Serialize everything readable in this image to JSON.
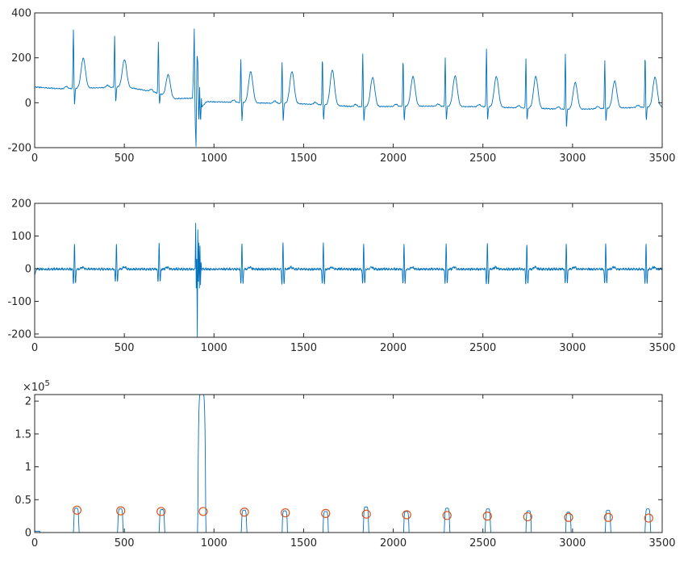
{
  "chart_data": [
    {
      "type": "line",
      "title": "",
      "xlabel": "",
      "ylabel": "",
      "xlim": [
        0,
        3500
      ],
      "ylim": [
        -200,
        400
      ],
      "x_ticks": [
        0,
        500,
        1000,
        1500,
        2000,
        2500,
        3000,
        3500
      ],
      "y_ticks": [
        -200,
        0,
        200,
        400
      ],
      "grid": false,
      "color": "#0072BD",
      "series": [
        {
          "trend": [
            [
              0,
              70
            ],
            [
              150,
              62
            ],
            [
              420,
              68
            ],
            [
              500,
              72
            ],
            [
              650,
              50
            ],
            [
              700,
              40
            ],
            [
              760,
              18
            ],
            [
              880,
              20
            ],
            [
              910,
              30
            ],
            [
              930,
              -20
            ],
            [
              960,
              5
            ],
            [
              1200,
              0
            ],
            [
              1500,
              -5
            ],
            [
              1800,
              -18
            ],
            [
              2200,
              -15
            ],
            [
              2500,
              -18
            ],
            [
              2800,
              -25
            ],
            [
              3000,
              -30
            ],
            [
              3400,
              -20
            ],
            [
              3500,
              -18
            ]
          ],
          "beats": [
            {
              "r": 216,
              "peak": 330,
              "s": -12,
              "t": 197
            },
            {
              "r": 446,
              "peak": 300,
              "s": 0,
              "t": 190
            },
            {
              "r": 690,
              "peak": 273,
              "s": -8,
              "t": 143
            },
            {
              "r": 1150,
              "peak": 198,
              "s": -85,
              "t": 139
            },
            {
              "r": 1380,
              "peak": 185,
              "s": -85,
              "t": 140
            },
            {
              "r": 1605,
              "peak": 205,
              "s": -80,
              "t": 148
            },
            {
              "r": 1830,
              "peak": 222,
              "s": -85,
              "t": 112
            },
            {
              "r": 2055,
              "peak": 198,
              "s": -82,
              "t": 116
            },
            {
              "r": 2290,
              "peak": 203,
              "s": -78,
              "t": 120
            },
            {
              "r": 2520,
              "peak": 244,
              "s": -80,
              "t": 118
            },
            {
              "r": 2740,
              "peak": 200,
              "s": -80,
              "t": 118
            },
            {
              "r": 2960,
              "peak": 222,
              "s": -112,
              "t": 90
            },
            {
              "r": 3180,
              "peak": 190,
              "s": -85,
              "t": 95
            },
            {
              "r": 3405,
              "peak": 215,
              "s": -82,
              "t": 113
            }
          ],
          "artifact": {
            "x": [
              880,
              885,
              890,
              895,
              900,
              905,
              910,
              915,
              920,
              925,
              930
            ],
            "y": [
              20,
              120,
              330,
              -80,
              -195,
              215,
              180,
              -110,
              70,
              -100,
              20
            ]
          }
        }
      ]
    },
    {
      "type": "line",
      "title": "",
      "xlabel": "",
      "ylabel": "",
      "xlim": [
        0,
        3500
      ],
      "ylim": [
        -210,
        200
      ],
      "x_ticks": [
        0,
        500,
        1000,
        1500,
        2000,
        2500,
        3000,
        3500
      ],
      "y_ticks": [
        -200,
        -100,
        0,
        100,
        200
      ],
      "grid": false,
      "color": "#0072BD",
      "series": [
        {
          "beats": [
            {
              "r": 222,
              "peak": 80,
              "min": -45
            },
            {
              "r": 456,
              "peak": 80,
              "min": -40
            },
            {
              "r": 694,
              "peak": 82,
              "min": -40
            },
            {
              "r": 1156,
              "peak": 80,
              "min": -45
            },
            {
              "r": 1385,
              "peak": 80,
              "min": -45
            },
            {
              "r": 1610,
              "peak": 80,
              "min": -45
            },
            {
              "r": 1835,
              "peak": 80,
              "min": -45
            },
            {
              "r": 2060,
              "peak": 80,
              "min": -45
            },
            {
              "r": 2295,
              "peak": 80,
              "min": -45
            },
            {
              "r": 2525,
              "peak": 80,
              "min": -45
            },
            {
              "r": 2745,
              "peak": 78,
              "min": -45
            },
            {
              "r": 2965,
              "peak": 80,
              "min": -45
            },
            {
              "r": 3185,
              "peak": 80,
              "min": -45
            },
            {
              "r": 3410,
              "peak": 80,
              "min": -45
            }
          ],
          "artifact": {
            "x": [
              895,
              898,
              901,
              904,
              907,
              910,
              913,
              916,
              919,
              922,
              925,
              928,
              931
            ],
            "y": [
              0,
              140,
              -60,
              30,
              -210,
              120,
              -40,
              80,
              -60,
              70,
              -50,
              20,
              0
            ]
          }
        }
      ]
    },
    {
      "type": "line",
      "title": "",
      "xlabel": "",
      "ylabel": "",
      "exponent_label": "×10",
      "exponent_power": "5",
      "xlim": [
        0,
        3500
      ],
      "ylim": [
        0,
        2.1
      ],
      "x_ticks": [
        0,
        500,
        1000,
        1500,
        2000,
        2500,
        3000,
        3500
      ],
      "y_ticks": [
        0,
        0.5,
        1,
        1.5,
        2
      ],
      "y_tick_labels": [
        "0",
        "0.5",
        "1",
        "1.5",
        "2"
      ],
      "grid": false,
      "line_color": "#0072BD",
      "marker_color": "#D95319",
      "series": [
        {
          "name": "",
          "humps": [
            {
              "center": 232,
              "height": 0.37
            },
            {
              "center": 478,
              "height": 0.36
            },
            {
              "center": 710,
              "height": 0.35
            },
            {
              "center": 932,
              "height": 2.12,
              "width": 45
            },
            {
              "center": 1168,
              "height": 0.34
            },
            {
              "center": 1395,
              "height": 0.33
            },
            {
              "center": 1623,
              "height": 0.32
            },
            {
              "center": 1848,
              "height": 0.39
            },
            {
              "center": 2073,
              "height": 0.32
            },
            {
              "center": 2300,
              "height": 0.37
            },
            {
              "center": 2528,
              "height": 0.36
            },
            {
              "center": 2755,
              "height": 0.33
            },
            {
              "center": 2977,
              "height": 0.31
            },
            {
              "center": 3198,
              "height": 0.34
            },
            {
              "center": 3420,
              "height": 0.36
            }
          ]
        },
        {
          "name": "",
          "marker": "circle",
          "x": [
            236,
            480,
            705,
            940,
            1170,
            1398,
            1623,
            1850,
            2075,
            2300,
            2525,
            2750,
            2978,
            3200,
            3425
          ],
          "y": [
            0.34,
            0.33,
            0.32,
            0.32,
            0.31,
            0.3,
            0.29,
            0.28,
            0.27,
            0.26,
            0.25,
            0.24,
            0.23,
            0.23,
            0.22
          ]
        }
      ]
    }
  ]
}
